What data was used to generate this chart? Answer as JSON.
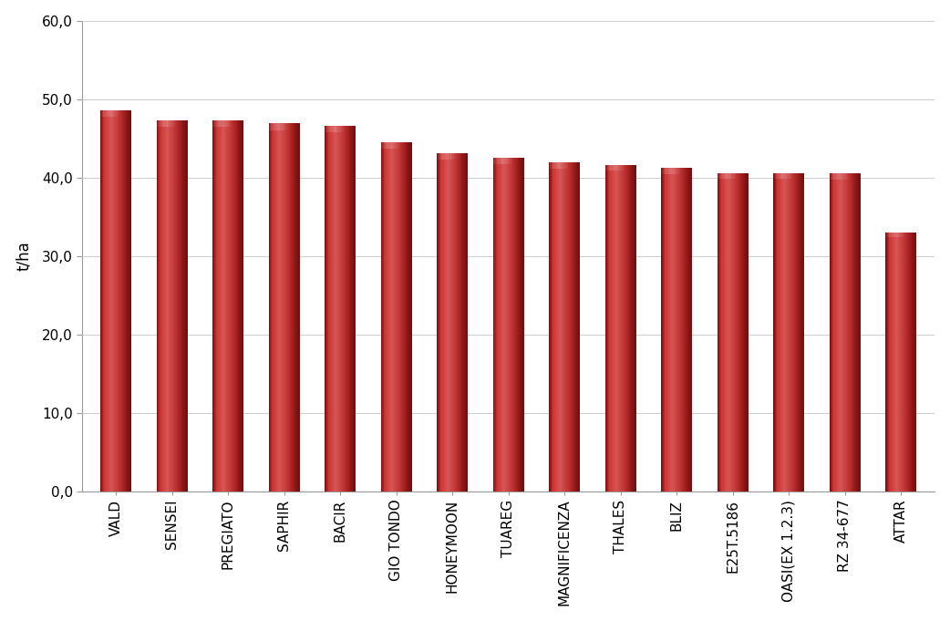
{
  "categories": [
    "VALD",
    "SENSEI",
    "PREGIATO",
    "SAPHIR",
    "BACIR",
    "GIO TONDO",
    "HONEYMOON",
    "TUAREG",
    "MAGNIFICENZA",
    "THALES",
    "BLIZ",
    "E25T.5186",
    "OASI(EX 1.2.3)",
    "RZ 34-677",
    "ATTAR"
  ],
  "values": [
    48.6,
    47.3,
    47.3,
    46.9,
    46.6,
    44.5,
    43.1,
    42.5,
    41.9,
    41.6,
    41.2,
    40.6,
    40.6,
    40.5,
    33.0
  ],
  "bar_color_center": "#CD4040",
  "bar_color_edge_dark": "#8B1A1A",
  "bar_color_highlight": "#D96060",
  "ylabel": "t/ha",
  "ylim": [
    0,
    60
  ],
  "yticks": [
    0.0,
    10.0,
    20.0,
    30.0,
    40.0,
    50.0,
    60.0
  ],
  "ytick_labels": [
    "0,0",
    "10,0",
    "20,0",
    "30,0",
    "40,0",
    "50,0",
    "60,0"
  ],
  "background_color": "#FFFFFF",
  "plot_area_color": "#FFFFFF",
  "grid_color": "#D0D0D0",
  "bar_width": 0.55,
  "tick_fontsize": 11,
  "label_fontsize": 12
}
